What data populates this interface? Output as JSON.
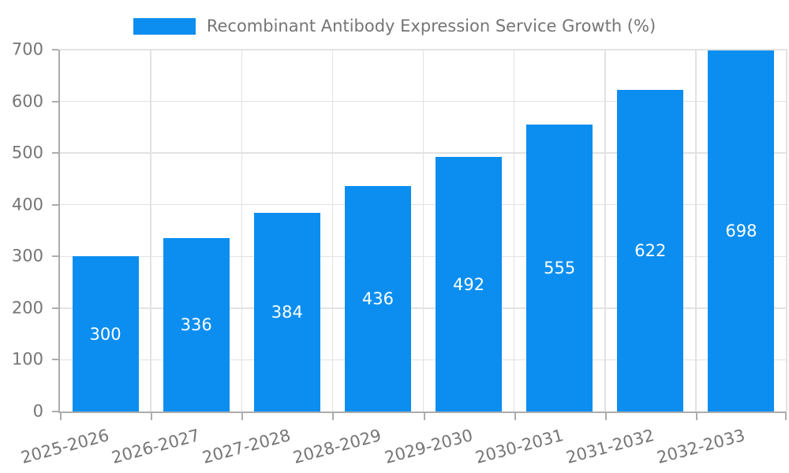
{
  "colors": {
    "bar": "#0B8EF0",
    "axis_text": "#757575",
    "grid_line": "#E2E2E2",
    "axis_line": "#ACACAC",
    "value_label_text": "#FFFFFF",
    "background": "#FFFFFF"
  },
  "chart_data": {
    "type": "bar",
    "title": "Recombinant Antibody Expression Service Growth (%)",
    "categories": [
      "2025-2026",
      "2026-2027",
      "2027-2028",
      "2028-2029",
      "2029-2030",
      "2030-2031",
      "2031-2032",
      "2032-2033"
    ],
    "values": [
      300,
      336,
      384,
      436,
      492,
      555,
      622,
      698
    ],
    "xlabel": "",
    "ylabel": "",
    "ylim": [
      0,
      700
    ],
    "yticks": [
      0,
      100,
      200,
      300,
      400,
      500,
      600,
      700
    ],
    "grid": true,
    "legend_position": "top-center",
    "legend_entries": [
      "Recombinant Antibody Expression Service Growth (%)"
    ],
    "value_labels": "inside-middle",
    "x_tick_rotation": -15
  }
}
